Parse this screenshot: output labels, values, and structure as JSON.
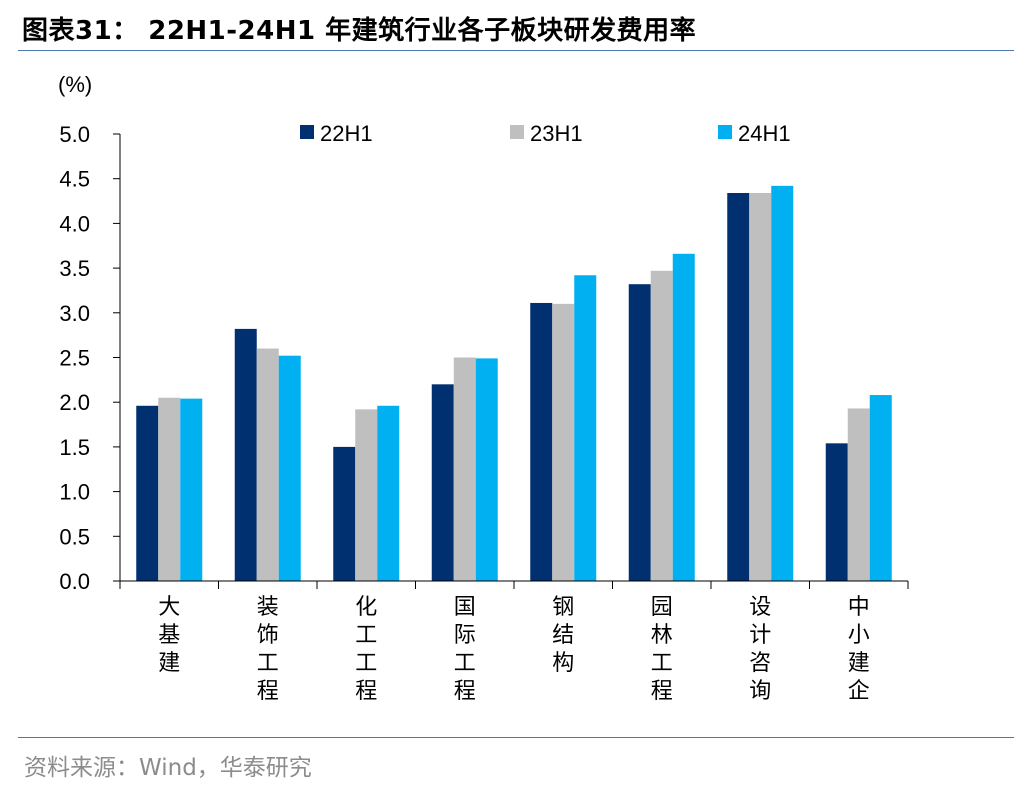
{
  "header": {
    "title": "图表31：  22H1-24H1 年建筑行业各子板块研发费用率"
  },
  "footer": {
    "source": "资料来源：Wind，华泰研究"
  },
  "colors": {
    "series_22H1": "#003070",
    "series_23H1": "#bfbfbf",
    "series_24H1": "#00b0f0",
    "rule": "#4a78a8"
  },
  "chart_data": {
    "type": "bar",
    "title": "",
    "xlabel": "",
    "ylabel": "(%)",
    "ylim": [
      0,
      5.0
    ],
    "yticks": [
      "0.0",
      "0.5",
      "1.0",
      "1.5",
      "2.0",
      "2.5",
      "3.0",
      "3.5",
      "4.0",
      "4.5",
      "5.0"
    ],
    "grid": false,
    "legend_position": "top",
    "categories": [
      "大基建",
      "装饰工程",
      "化工工程",
      "国际工程",
      "钢结构",
      "园林工程",
      "设计咨询",
      "中小建企"
    ],
    "series": [
      {
        "name": "22H1",
        "color": "#003070",
        "values": [
          1.96,
          2.82,
          1.5,
          2.2,
          3.11,
          3.32,
          4.34,
          1.54
        ]
      },
      {
        "name": "23H1",
        "color": "#bfbfbf",
        "values": [
          2.05,
          2.6,
          1.92,
          2.5,
          3.1,
          3.47,
          4.34,
          1.93
        ]
      },
      {
        "name": "24H1",
        "color": "#00b0f0",
        "values": [
          2.04,
          2.52,
          1.96,
          2.49,
          3.42,
          3.66,
          4.42,
          2.08
        ]
      }
    ]
  }
}
